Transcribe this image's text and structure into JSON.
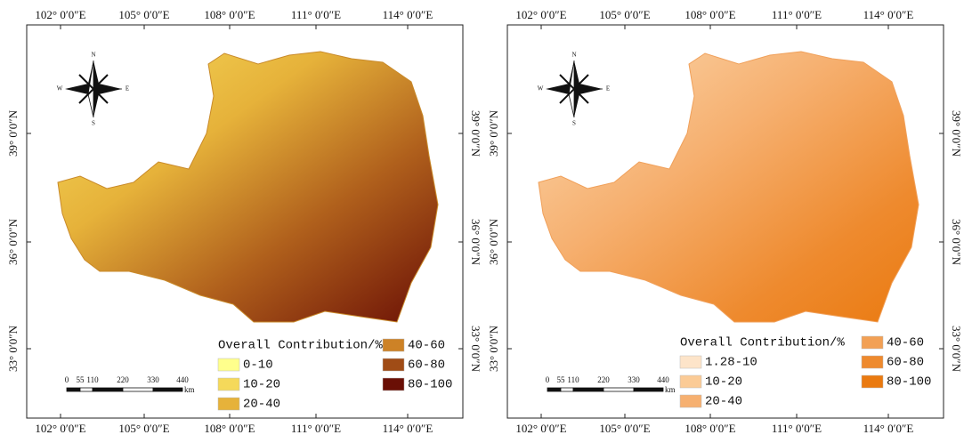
{
  "panels": [
    {
      "top_labels": [
        "102° 0′0″E",
        "105° 0′0″E",
        "108° 0′0″E",
        "111° 0′0″E",
        "114° 0′0″E"
      ],
      "bottom_labels": [
        "102° 0′0″E",
        "105° 0′0″E",
        "108° 0′0″E",
        "111° 0′0″E",
        "114° 0′0″E"
      ],
      "left_labels": [
        "39° 0′0″N",
        "36° 0′0″N",
        "33° 0′0″N"
      ],
      "right_labels": [
        "39° 0′0″N",
        "36° 0′0″N",
        "33° 0′0″N"
      ],
      "compass": {
        "n": "N",
        "w": "W",
        "e": "E",
        "s": "S"
      },
      "scale_bar": {
        "ticks": [
          "0",
          "55",
          "110",
          "220",
          "330",
          "440"
        ],
        "unit": "km"
      },
      "legend": {
        "title": "Overall Contribution/%",
        "items": [
          {
            "label": "0-10",
            "color": "#ffff8c"
          },
          {
            "label": "10-20",
            "color": "#f5d95a"
          },
          {
            "label": "20-40",
            "color": "#e6b23a"
          },
          {
            "label": "40-60",
            "color": "#cd8226"
          },
          {
            "label": "60-80",
            "color": "#a04c16"
          },
          {
            "label": "80-100",
            "color": "#6a0f05"
          }
        ]
      }
    },
    {
      "top_labels": [
        "102° 0′0″E",
        "105° 0′0″E",
        "108° 0′0″E",
        "111° 0′0″E",
        "114° 0′0″E"
      ],
      "bottom_labels": [
        "102° 0′0″E",
        "105° 0′0″E",
        "108° 0′0″E",
        "111° 0′0″E",
        "114° 0′0″E"
      ],
      "left_labels": [
        "39° 0′0″N",
        "36° 0′0″N",
        "33° 0′0″N"
      ],
      "right_labels": [
        "39° 0′0″N",
        "36° 0′0″N",
        "33° 0′0″N"
      ],
      "compass": {
        "n": "N",
        "w": "W",
        "e": "E",
        "s": "S"
      },
      "scale_bar": {
        "ticks": [
          "0",
          "55",
          "110",
          "220",
          "330",
          "440"
        ],
        "unit": "km"
      },
      "legend": {
        "title": "Overall Contribution/%",
        "items": [
          {
            "label": "1.28-10",
            "color": "#fde4c9"
          },
          {
            "label": "10-20",
            "color": "#fbcb96"
          },
          {
            "label": "20-40",
            "color": "#f6b070"
          },
          {
            "label": "40-60",
            "color": "#f2a055"
          },
          {
            "label": "60-80",
            "color": "#ee8a2e"
          },
          {
            "label": "80-100",
            "color": "#ea7a10"
          }
        ]
      }
    }
  ]
}
